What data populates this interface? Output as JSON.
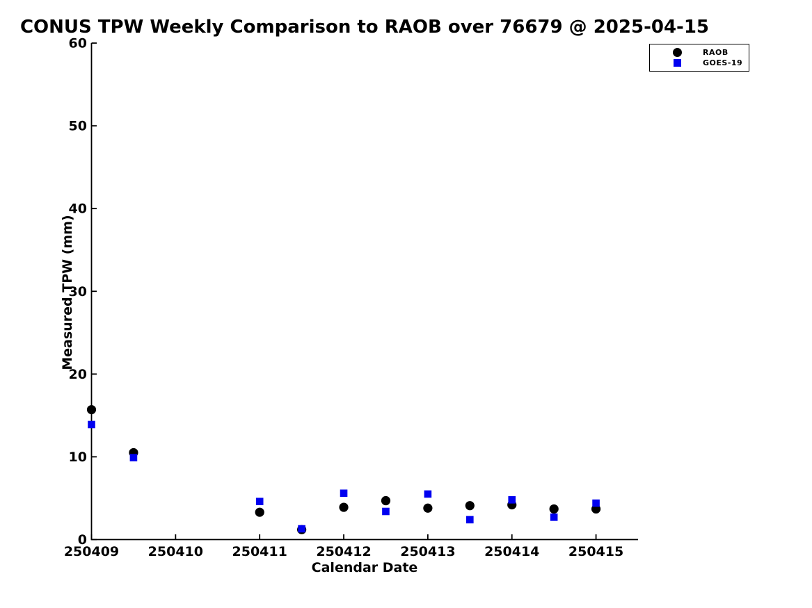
{
  "chart_data": {
    "type": "scatter",
    "title": "CONUS TPW Weekly Comparison to RAOB over 76679 @ 2025-04-15",
    "xlabel": "Calendar Date",
    "ylabel": "Measured TPW (mm)",
    "xlim": [
      250409,
      250415.5
    ],
    "ylim": [
      0,
      60
    ],
    "grid": false,
    "legend_position": "top-right-outside",
    "x_ticks": [
      {
        "value": 250409,
        "label": "250409"
      },
      {
        "value": 250410,
        "label": "250410"
      },
      {
        "value": 250411,
        "label": "250411"
      },
      {
        "value": 250412,
        "label": "250412"
      },
      {
        "value": 250413,
        "label": "250413"
      },
      {
        "value": 250414,
        "label": "250414"
      },
      {
        "value": 250415,
        "label": "250415"
      }
    ],
    "y_ticks": [
      {
        "value": 0,
        "label": "0"
      },
      {
        "value": 10,
        "label": "10"
      },
      {
        "value": 20,
        "label": "20"
      },
      {
        "value": 30,
        "label": "30"
      },
      {
        "value": 40,
        "label": "40"
      },
      {
        "value": 50,
        "label": "50"
      },
      {
        "value": 60,
        "label": "60"
      }
    ],
    "series": [
      {
        "name": "RAOB",
        "marker": "circle",
        "color": "#000000",
        "points": [
          [
            250409,
            15.7
          ],
          [
            250409.5,
            10.5
          ],
          [
            250411,
            3.3
          ],
          [
            250411.5,
            1.2
          ],
          [
            250412,
            3.9
          ],
          [
            250412.5,
            4.7
          ],
          [
            250413,
            3.8
          ],
          [
            250413.5,
            4.1
          ],
          [
            250414,
            4.2
          ],
          [
            250414.5,
            3.7
          ],
          [
            250415,
            3.7
          ]
        ]
      },
      {
        "name": "GOES-19",
        "marker": "square",
        "color": "#0000f0",
        "points": [
          [
            250409,
            13.9
          ],
          [
            250409.5,
            9.9
          ],
          [
            250411,
            4.6
          ],
          [
            250411.5,
            1.3
          ],
          [
            250412,
            5.6
          ],
          [
            250412.5,
            3.4
          ],
          [
            250413,
            5.5
          ],
          [
            250413.5,
            2.4
          ],
          [
            250414,
            4.8
          ],
          [
            250414.5,
            2.7
          ],
          [
            250415,
            4.4
          ]
        ]
      }
    ]
  }
}
